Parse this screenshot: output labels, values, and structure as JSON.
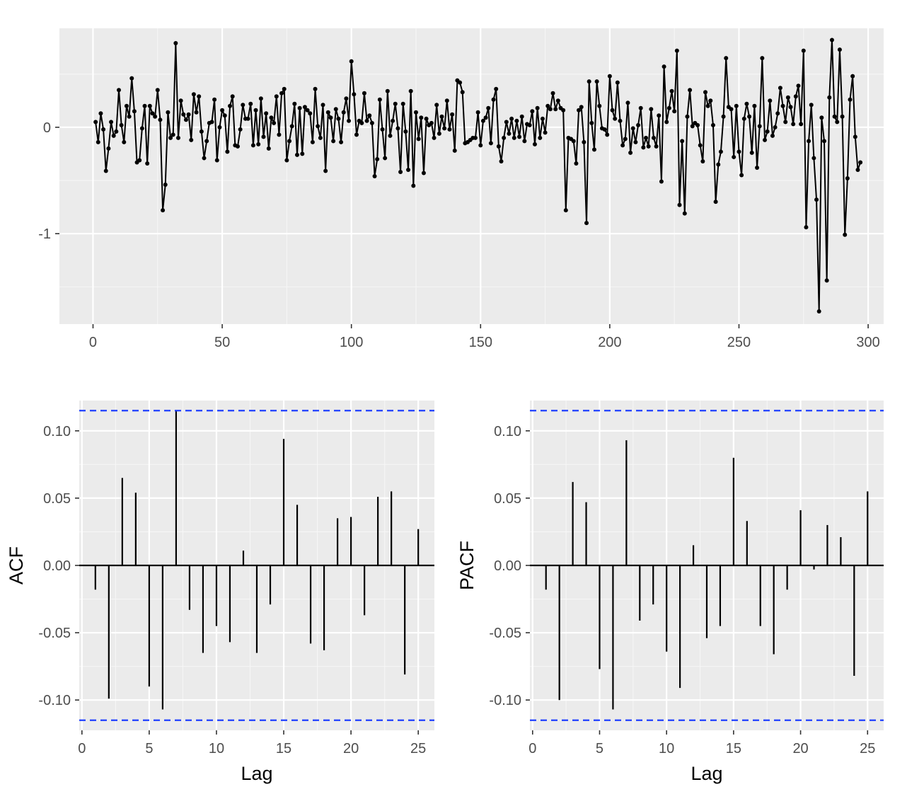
{
  "chart_data": [
    {
      "type": "line",
      "title": "",
      "xlabel": "",
      "ylabel": "",
      "xlim": [
        -13,
        306
      ],
      "ylim": [
        -1.85,
        0.93
      ],
      "x_ticks": [
        0,
        50,
        100,
        150,
        200,
        250,
        300
      ],
      "x_tick_labels": [
        "0",
        "50",
        "100",
        "150",
        "200",
        "250",
        "300"
      ],
      "y_ticks": [
        0,
        -1
      ],
      "y_tick_labels": [
        "0",
        "-1"
      ],
      "grid": true,
      "markers": true,
      "values": [
        0.05,
        -0.14,
        0.13,
        -0.02,
        -0.41,
        -0.2,
        0.05,
        -0.08,
        -0.04,
        0.35,
        0.02,
        -0.14,
        0.2,
        0.1,
        0.46,
        0.15,
        -0.33,
        -0.31,
        -0.01,
        0.2,
        -0.34,
        0.2,
        0.13,
        0.1,
        0.35,
        0.07,
        -0.78,
        -0.54,
        0.14,
        -0.1,
        -0.07,
        0.79,
        -0.1,
        0.25,
        0.12,
        0.07,
        0.12,
        -0.12,
        0.31,
        0.14,
        0.29,
        -0.04,
        -0.29,
        -0.13,
        0.04,
        0.05,
        0.26,
        -0.31,
        0.0,
        0.16,
        0.11,
        -0.23,
        0.2,
        0.29,
        -0.17,
        -0.18,
        -0.02,
        0.21,
        0.08,
        0.08,
        0.22,
        -0.17,
        0.16,
        -0.16,
        0.27,
        -0.09,
        0.13,
        -0.2,
        0.09,
        0.04,
        0.29,
        -0.07,
        0.32,
        0.36,
        -0.31,
        -0.13,
        0.01,
        0.22,
        -0.26,
        0.18,
        -0.25,
        0.19,
        0.16,
        0.13,
        -0.14,
        0.36,
        0.01,
        -0.1,
        0.21,
        -0.41,
        0.14,
        0.09,
        -0.13,
        0.17,
        0.08,
        -0.14,
        0.14,
        0.27,
        0.06,
        0.62,
        0.31,
        -0.07,
        0.06,
        0.04,
        0.32,
        0.06,
        0.11,
        0.04,
        -0.46,
        -0.3,
        0.26,
        -0.02,
        -0.29,
        0.34,
        -0.08,
        0.06,
        0.22,
        -0.01,
        -0.42,
        0.22,
        -0.04,
        -0.4,
        0.34,
        -0.55,
        0.14,
        -0.11,
        0.09,
        -0.43,
        0.08,
        0.02,
        0.04,
        -0.1,
        0.21,
        -0.06,
        0.1,
        -0.01,
        0.25,
        -0.02,
        0.12,
        -0.22,
        0.44,
        0.42,
        0.33,
        -0.15,
        -0.14,
        -0.12,
        -0.1,
        -0.1,
        0.14,
        -0.17,
        0.06,
        0.09,
        0.18,
        -0.15,
        0.26,
        0.36,
        -0.18,
        -0.32,
        -0.1,
        0.05,
        -0.06,
        0.08,
        -0.1,
        0.06,
        -0.09,
        0.1,
        -0.13,
        0.03,
        0.02,
        0.15,
        -0.16,
        0.18,
        -0.1,
        0.08,
        -0.05,
        0.2,
        0.17,
        0.32,
        0.17,
        0.25,
        0.18,
        0.16,
        -0.78,
        -0.1,
        -0.11,
        -0.13,
        -0.34,
        0.16,
        0.19,
        -0.14,
        -0.9,
        0.43,
        0.04,
        -0.21,
        0.43,
        0.2,
        -0.01,
        -0.02,
        -0.07,
        0.48,
        0.16,
        0.08,
        0.42,
        0.06,
        -0.17,
        -0.11,
        0.23,
        -0.24,
        -0.01,
        -0.14,
        0.02,
        0.18,
        -0.19,
        -0.1,
        -0.18,
        0.17,
        -0.1,
        -0.18,
        0.11,
        -0.51,
        0.57,
        0.05,
        0.18,
        0.34,
        0.15,
        0.72,
        -0.73,
        -0.13,
        -0.81,
        0.1,
        0.35,
        0.01,
        0.04,
        0.02,
        -0.17,
        -0.32,
        0.33,
        0.2,
        0.25,
        0.02,
        -0.7,
        -0.35,
        -0.23,
        0.1,
        0.65,
        0.19,
        0.17,
        -0.28,
        0.2,
        -0.23,
        -0.45,
        0.08,
        0.22,
        0.1,
        -0.24,
        0.2,
        -0.38,
        0.01,
        0.65,
        -0.12,
        -0.04,
        0.25,
        -0.08,
        0.0,
        0.13,
        0.37,
        0.2,
        0.05,
        0.28,
        0.19,
        0.03,
        0.29,
        0.39,
        0.03,
        0.72,
        -0.94,
        -0.13,
        0.21,
        -0.29,
        -0.68,
        -1.73,
        0.09,
        -0.13,
        -1.44,
        0.28,
        0.82,
        0.1,
        0.05,
        0.73,
        0.1,
        -1.01,
        -0.48,
        0.26,
        0.48,
        -0.09,
        -0.4,
        -0.33
      ]
    },
    {
      "type": "bar",
      "title": "",
      "xlabel": "Lag",
      "ylabel": "ACF",
      "xlim": [
        -0.2,
        26.2
      ],
      "ylim": [
        -0.1225,
        0.1225
      ],
      "x_ticks": [
        0,
        5,
        10,
        15,
        20,
        25
      ],
      "x_tick_labels": [
        "0",
        "5",
        "10",
        "15",
        "20",
        "25"
      ],
      "y_ticks": [
        0.1,
        0.05,
        0.0,
        -0.05,
        -0.1
      ],
      "y_tick_labels": [
        "0.10",
        "0.05",
        "0.00",
        "-0.05",
        "-0.10"
      ],
      "confidence_bound": 0.115,
      "grid": true,
      "lags": [
        1,
        2,
        3,
        4,
        5,
        6,
        7,
        8,
        9,
        10,
        11,
        12,
        13,
        14,
        15,
        16,
        17,
        18,
        19,
        20,
        21,
        22,
        23,
        24,
        25
      ],
      "values": [
        -0.018,
        -0.099,
        0.065,
        0.054,
        -0.09,
        -0.107,
        0.115,
        -0.033,
        -0.065,
        -0.045,
        -0.057,
        0.011,
        -0.065,
        -0.029,
        0.094,
        0.045,
        -0.058,
        -0.063,
        0.035,
        0.036,
        -0.037,
        0.051,
        0.055,
        -0.081,
        0.027
      ]
    },
    {
      "type": "bar",
      "title": "",
      "xlabel": "Lag",
      "ylabel": "PACF",
      "xlim": [
        -0.2,
        26.2
      ],
      "ylim": [
        -0.1225,
        0.1225
      ],
      "x_ticks": [
        0,
        5,
        10,
        15,
        20,
        25
      ],
      "x_tick_labels": [
        "0",
        "5",
        "10",
        "15",
        "20",
        "25"
      ],
      "y_ticks": [
        0.1,
        0.05,
        0.0,
        -0.05,
        -0.1
      ],
      "y_tick_labels": [
        "0.10",
        "0.05",
        "0.00",
        "-0.05",
        "-0.10"
      ],
      "confidence_bound": 0.115,
      "grid": true,
      "lags": [
        1,
        2,
        3,
        4,
        5,
        6,
        7,
        8,
        9,
        10,
        11,
        12,
        13,
        14,
        15,
        16,
        17,
        18,
        19,
        20,
        21,
        22,
        23,
        24,
        25
      ],
      "values": [
        -0.018,
        -0.1,
        0.062,
        0.047,
        -0.077,
        -0.107,
        0.093,
        -0.041,
        -0.029,
        -0.064,
        -0.091,
        0.015,
        -0.054,
        -0.045,
        0.08,
        0.033,
        -0.045,
        -0.066,
        -0.018,
        0.041,
        -0.003,
        0.03,
        0.021,
        -0.082,
        0.055
      ]
    }
  ]
}
